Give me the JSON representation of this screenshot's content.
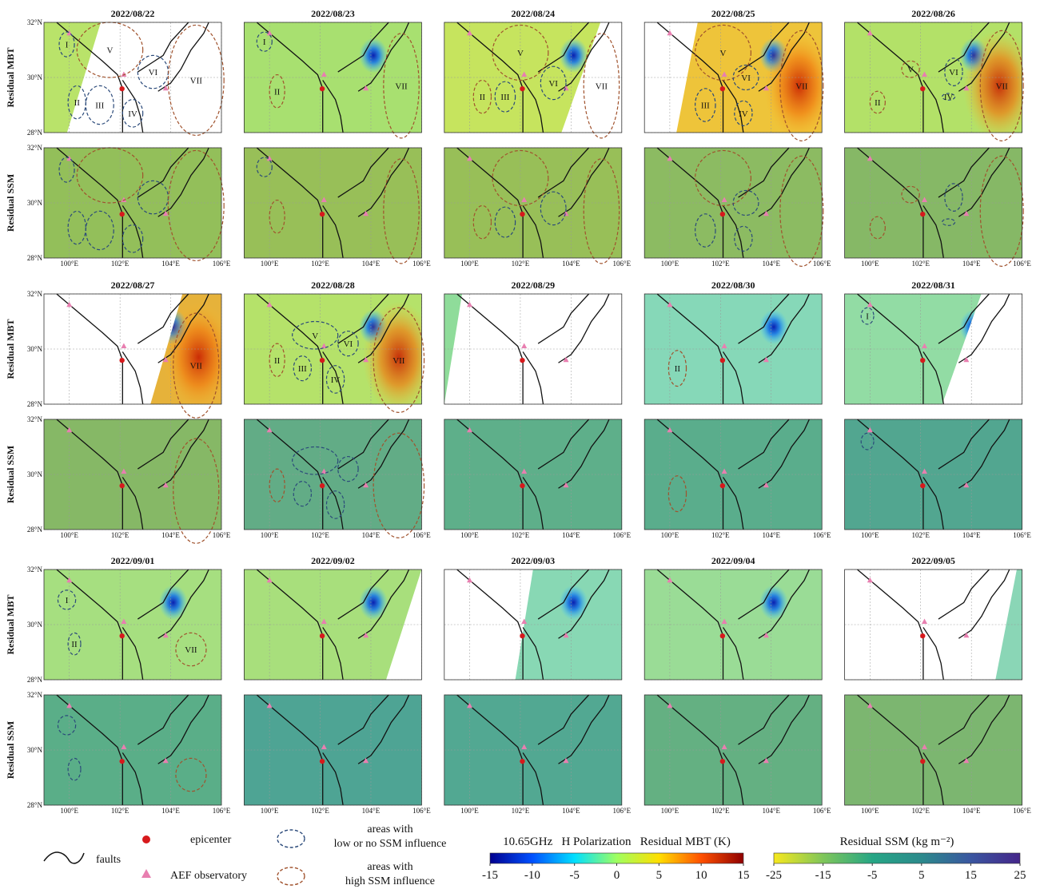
{
  "row_labels": {
    "mbt": "Residual MBT",
    "ssm": "Residual SSM"
  },
  "lat_ticks": [
    {
      "value": 32,
      "label": "32°N"
    },
    {
      "value": 30,
      "label": "30°N"
    },
    {
      "value": 28,
      "label": "28°N"
    }
  ],
  "lon_ticks": [
    {
      "value": 100,
      "label": "100°E"
    },
    {
      "value": 102,
      "label": "102°E"
    },
    {
      "value": 104,
      "label": "104°E"
    },
    {
      "value": 106,
      "label": "106°E"
    }
  ],
  "panels": [
    {
      "date": "2022/08/22",
      "mbt_fill": "#b9e36a",
      "ssm_fill": "#93bf5a",
      "regions": [
        {
          "label": "I",
          "color": "#2b4a7a"
        },
        {
          "label": "II",
          "color": "#2b4a7a"
        },
        {
          "label": "III",
          "color": "#2b4a7a"
        },
        {
          "label": "IV",
          "color": "#2b4a7a"
        },
        {
          "label": "V",
          "color": "#a0522d"
        },
        {
          "label": "VI",
          "color": "#2b4a7a"
        },
        {
          "label": "VII",
          "color": "#a0522d"
        }
      ]
    },
    {
      "date": "2022/08/23",
      "mbt_fill": "#a8e070",
      "ssm_fill": "#98bf58",
      "regions": [
        {
          "label": "I",
          "color": "#2b4a7a"
        },
        {
          "label": "II",
          "color": "#a0522d"
        },
        {
          "label": "VII",
          "color": "#a0522d"
        }
      ]
    },
    {
      "date": "2022/08/24",
      "mbt_fill": "#c6e45e",
      "ssm_fill": "#98bf58",
      "regions": [
        {
          "label": "II",
          "color": "#a0522d"
        },
        {
          "label": "III",
          "color": "#2b4a7a"
        },
        {
          "label": "V",
          "color": "#a0522d"
        },
        {
          "label": "VI",
          "color": "#2b4a7a"
        },
        {
          "label": "VII",
          "color": "#a0522d"
        }
      ]
    },
    {
      "date": "2022/08/25",
      "mbt_fill": "#eec43a",
      "ssm_fill": "#8cbb62",
      "regions": [
        {
          "label": "III",
          "color": "#2b4a7a"
        },
        {
          "label": "IV",
          "color": "#2b4a7a"
        },
        {
          "label": "V",
          "color": "#a0522d"
        },
        {
          "label": "VI",
          "color": "#2b4a7a"
        },
        {
          "label": "VII",
          "color": "#a0522d"
        }
      ]
    },
    {
      "date": "2022/08/26",
      "mbt_fill": "#b3e168",
      "ssm_fill": "#86b866",
      "regions": [
        {
          "label": "II",
          "color": "#a0522d"
        },
        {
          "label": "IV",
          "color": "#2b4a7a"
        },
        {
          "label": "V",
          "color": "#a0522d"
        },
        {
          "label": "VI",
          "color": "#2b4a7a"
        },
        {
          "label": "VII",
          "color": "#a0522d"
        }
      ]
    },
    {
      "date": "2022/08/27",
      "mbt_fill": "#e6b23a",
      "ssm_fill": "#86b866",
      "regions": [
        {
          "label": "VII",
          "color": "#a0522d"
        }
      ]
    },
    {
      "date": "2022/08/28",
      "mbt_fill": "#b5e26a",
      "ssm_fill": "#62ac86",
      "regions": [
        {
          "label": "II",
          "color": "#a0522d"
        },
        {
          "label": "III",
          "color": "#2b4a7a"
        },
        {
          "label": "IV",
          "color": "#2b4a7a"
        },
        {
          "label": "V",
          "color": "#2b4a7a"
        },
        {
          "label": "VI",
          "color": "#2b4a7a"
        },
        {
          "label": "VII",
          "color": "#a0522d"
        }
      ]
    },
    {
      "date": "2022/08/29",
      "mbt_fill": "#8fdc9a",
      "ssm_fill": "#5eaf8a",
      "regions": []
    },
    {
      "date": "2022/08/30",
      "mbt_fill": "#86d8b8",
      "ssm_fill": "#5aad8c",
      "regions": [
        {
          "label": "II",
          "color": "#a0522d"
        }
      ]
    },
    {
      "date": "2022/08/31",
      "mbt_fill": "#92dca4",
      "ssm_fill": "#52a690",
      "regions": [
        {
          "label": "I",
          "color": "#2b4a7a"
        }
      ]
    },
    {
      "date": "2022/09/01",
      "mbt_fill": "#a6df80",
      "ssm_fill": "#5aae88",
      "regions": [
        {
          "label": "I",
          "color": "#2b4a7a"
        },
        {
          "label": "II",
          "color": "#2b4a7a"
        },
        {
          "label": "VII",
          "color": "#a0522d"
        }
      ]
    },
    {
      "date": "2022/09/02",
      "mbt_fill": "#a8df7c",
      "ssm_fill": "#4ea494",
      "regions": []
    },
    {
      "date": "2022/09/03",
      "mbt_fill": "#88d8b4",
      "ssm_fill": "#52a892",
      "regions": []
    },
    {
      "date": "2022/09/04",
      "mbt_fill": "#9adc96",
      "ssm_fill": "#64b082",
      "regions": []
    },
    {
      "date": "2022/09/05",
      "mbt_fill": "#8ad6b6",
      "ssm_fill": "#7cb670",
      "regions": []
    }
  ],
  "legend": {
    "faults": "faults",
    "epicenter": "epicenter",
    "observatory": "AEF observatory",
    "low": {
      "lines": [
        "areas with",
        "low or no SSM influence"
      ],
      "color": "#2b4a7a"
    },
    "high": {
      "lines": [
        "areas with",
        "high SSM influence"
      ],
      "color": "#a0522d"
    }
  },
  "colorbars": [
    {
      "title": "10.65GHz   H Polarization   Residual MBT (K)",
      "lim": [
        -15,
        15
      ],
      "ticks": [
        -15,
        -10,
        -5,
        0,
        5,
        10,
        15
      ],
      "colors": [
        "#00008f",
        "#0050ff",
        "#00dfff",
        "#9fff60",
        "#ffdf00",
        "#ff5000",
        "#8f0000"
      ]
    },
    {
      "title": "Residual SSM (kg m⁻²)",
      "lim": [
        -25,
        25
      ],
      "ticks": [
        -25,
        -15,
        -5,
        5,
        15,
        25
      ],
      "colors": [
        "#f7e81e",
        "#7fc65a",
        "#26a685",
        "#2c8a8c",
        "#3a56a0",
        "#45268a"
      ]
    }
  ]
}
